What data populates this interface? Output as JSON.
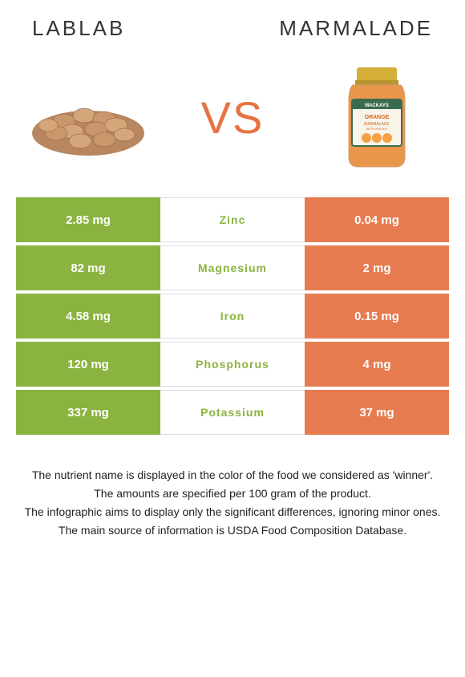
{
  "titles": {
    "left": "Lablab",
    "right": "Marmalade"
  },
  "vs": "VS",
  "colors": {
    "left": "#8bb33f",
    "right": "#e67b4f",
    "vs": "#e67345",
    "text": "#222222",
    "background": "#ffffff"
  },
  "rows": [
    {
      "left": "2.85 mg",
      "nutrient": "Zinc",
      "right": "0.04 mg",
      "winner": "left"
    },
    {
      "left": "82 mg",
      "nutrient": "Magnesium",
      "right": "2 mg",
      "winner": "left"
    },
    {
      "left": "4.58 mg",
      "nutrient": "Iron",
      "right": "0.15 mg",
      "winner": "left"
    },
    {
      "left": "120 mg",
      "nutrient": "Phosphorus",
      "right": "4 mg",
      "winner": "left"
    },
    {
      "left": "337 mg",
      "nutrient": "Potassium",
      "right": "37 mg",
      "winner": "left"
    }
  ],
  "footer": [
    "The nutrient name is displayed in the color of the food we considered as 'winner'.",
    "The amounts are specified per 100 gram of the product.",
    "The infographic aims to display only the significant differences, ignoring minor ones.",
    "The main source of information is USDA Food Composition Database."
  ],
  "images": {
    "left_alt": "lablab-beans-image",
    "right_alt": "marmalade-jar-image",
    "jar_label_brand": "MACKAYS",
    "jar_label_line1": "ORANGE",
    "jar_label_line2": "MARMALADE",
    "jar_label_line3": "WITH WHISKY"
  }
}
